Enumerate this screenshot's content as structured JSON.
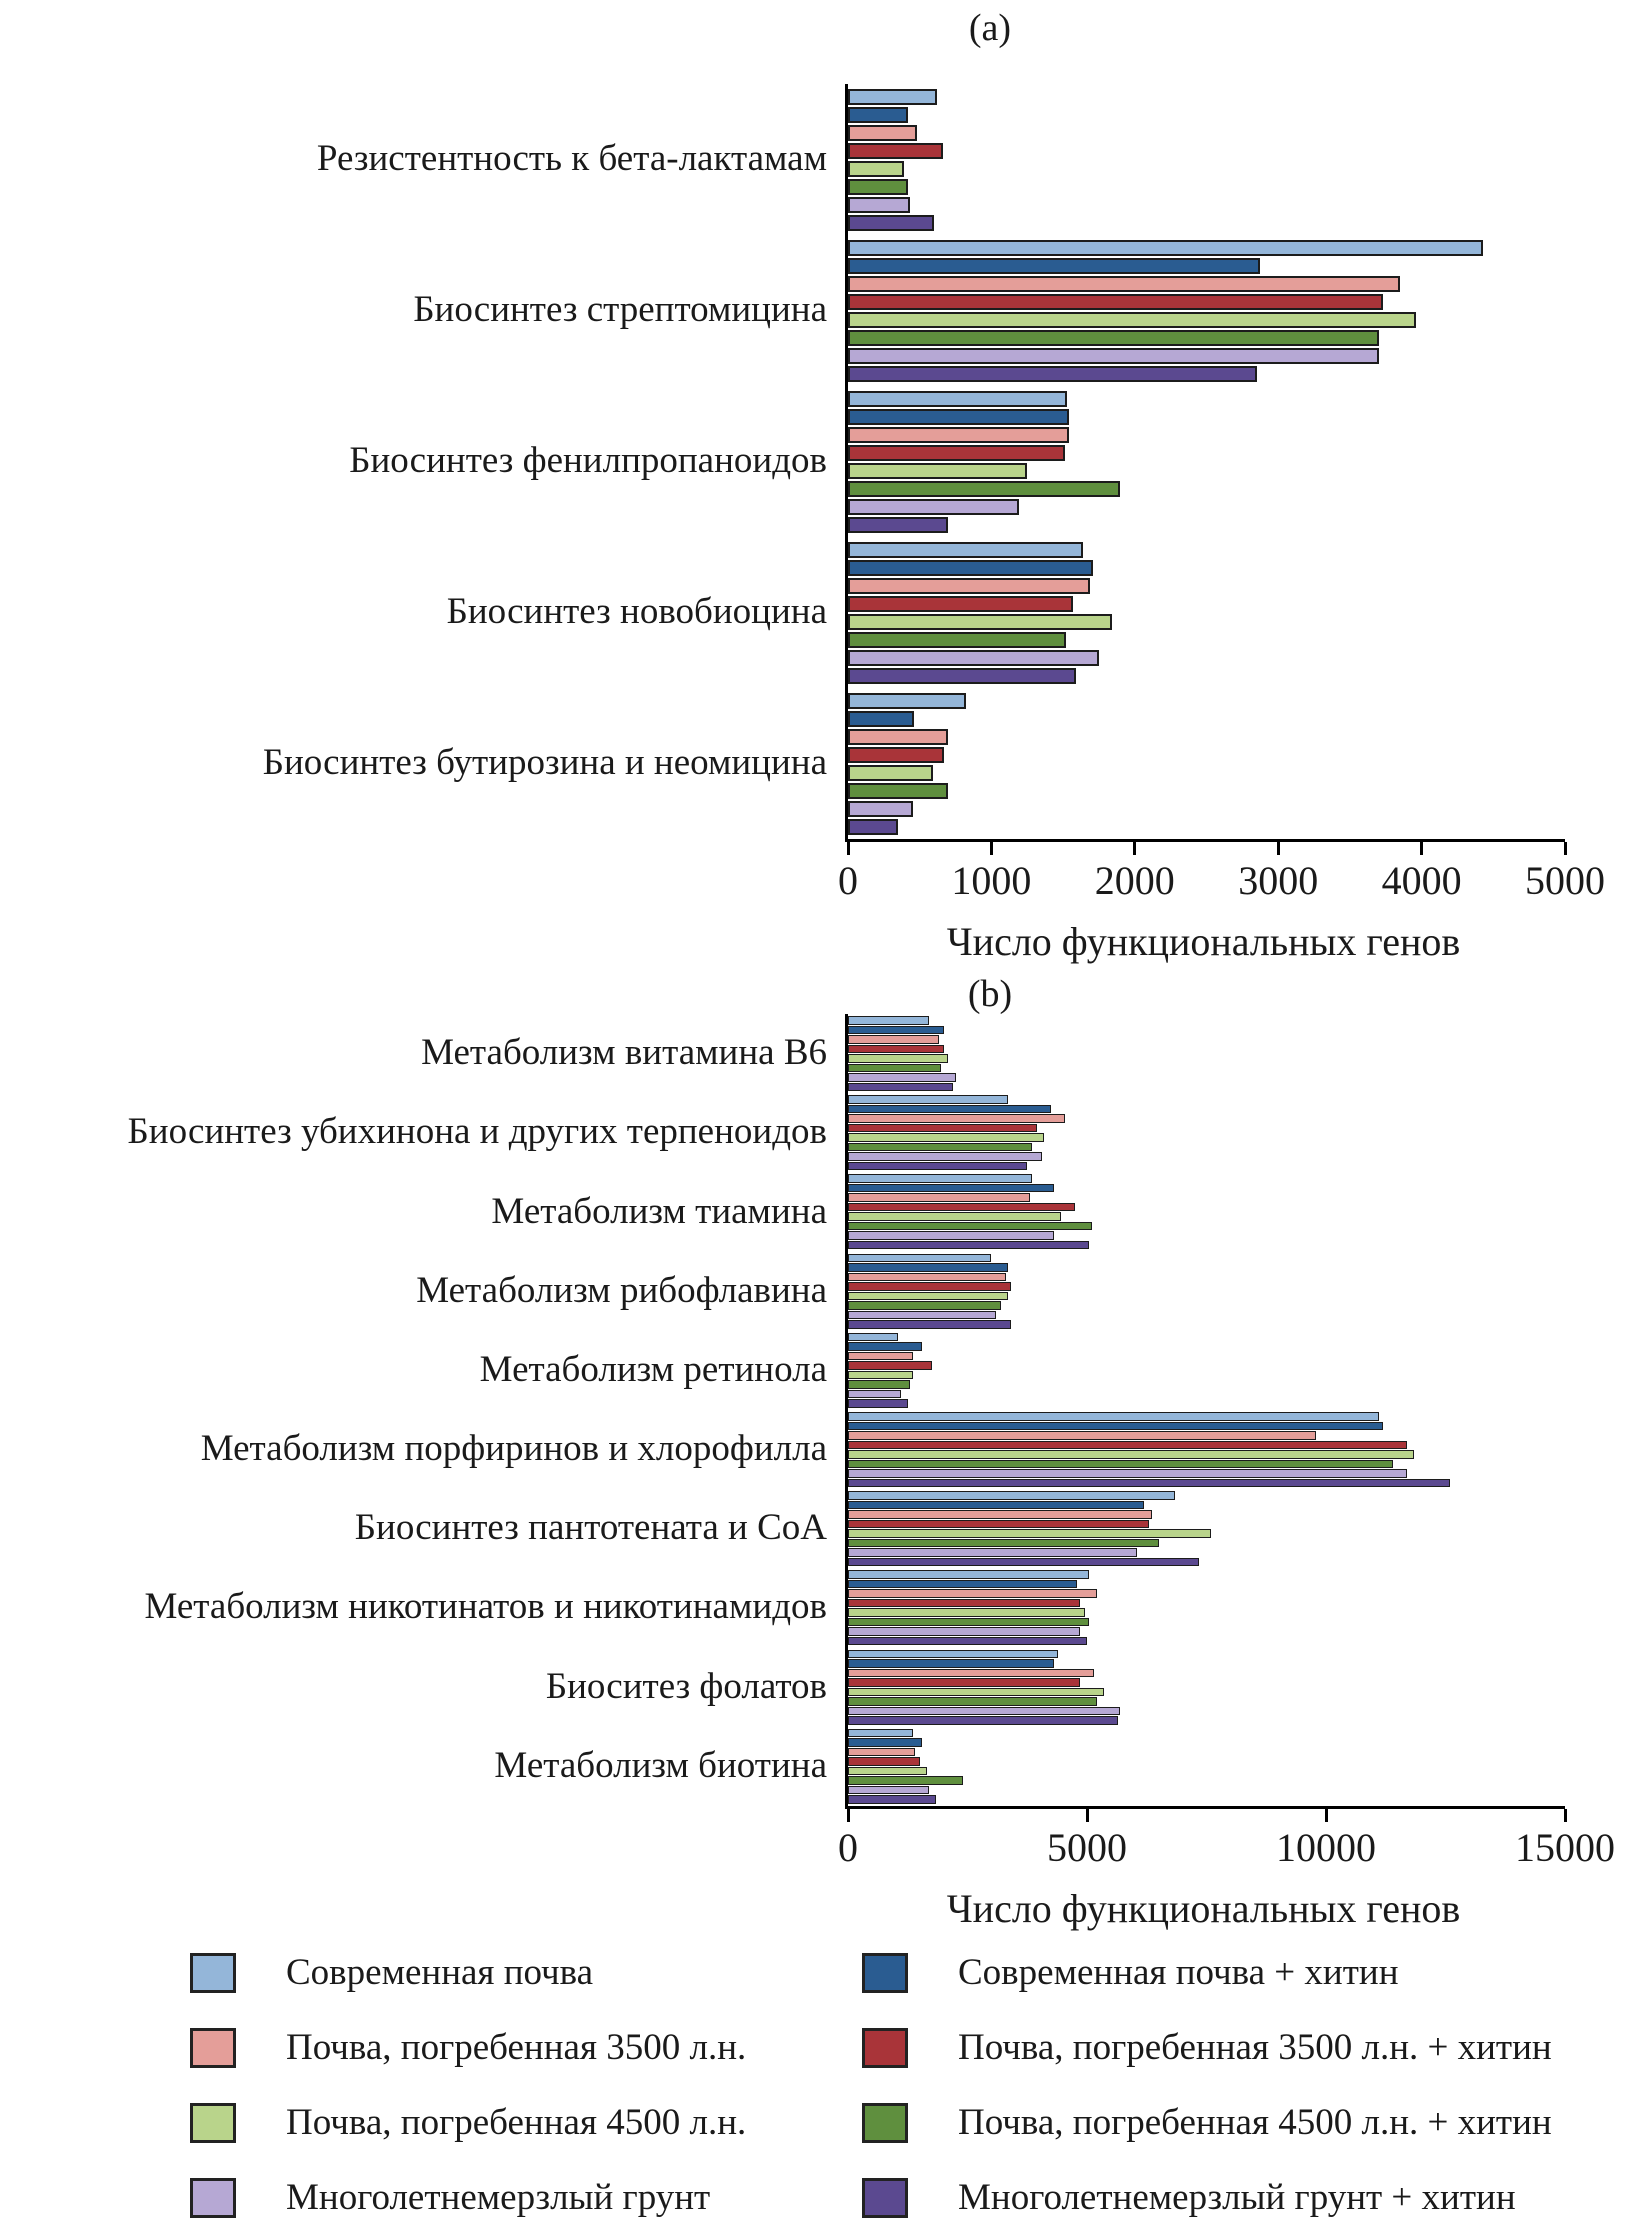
{
  "figure": {
    "axis_title": "Число функциональных генов"
  },
  "chart_data": [
    {
      "type": "bar",
      "orientation": "horizontal",
      "title": "(a)",
      "xlabel": "Число функциональных генов",
      "xlim": [
        0,
        5000
      ],
      "xticks": [
        0,
        1000,
        2000,
        3000,
        4000,
        5000
      ],
      "grid": false,
      "categories": [
        "Резистентность к бета-лактамам",
        "Биосинтез стрептомицина",
        "Биосинтез фенилпропаноидов",
        "Биосинтез новобиоцина",
        "Биосинтез бутирозина и неомицина"
      ],
      "series": [
        {
          "name": "Современная почва",
          "color": "#94b6d9",
          "values": [
            620,
            4430,
            1530,
            1640,
            820
          ]
        },
        {
          "name": "Современная почва + хитин",
          "color": "#2a5c91",
          "values": [
            420,
            2870,
            1540,
            1710,
            460
          ]
        },
        {
          "name": "Почва, погребенная 3500 л.н.",
          "color": "#e49e99",
          "values": [
            480,
            3850,
            1540,
            1690,
            700
          ]
        },
        {
          "name": "Почва, погребенная 3500 л.н. + хитин",
          "color": "#a93439",
          "values": [
            660,
            3730,
            1510,
            1570,
            670
          ]
        },
        {
          "name": "Почва, погребенная 4500 л.н.",
          "color": "#b9d48b",
          "values": [
            390,
            3960,
            1250,
            1840,
            590
          ]
        },
        {
          "name": "Почва, погребенная 4500 л.н. + хитин",
          "color": "#5f8f3e",
          "values": [
            420,
            3700,
            1900,
            1520,
            700
          ]
        },
        {
          "name": "Многолетнемерзлый грунт",
          "color": "#b6a8d4",
          "values": [
            430,
            3700,
            1190,
            1750,
            450
          ]
        },
        {
          "name": "Многолетнемерзлый грунт + хитин",
          "color": "#5b4990",
          "values": [
            600,
            2850,
            700,
            1590,
            350
          ]
        }
      ]
    },
    {
      "type": "bar",
      "orientation": "horizontal",
      "title": "(b)",
      "xlabel": "Число функциональных генов",
      "xlim": [
        0,
        15000
      ],
      "xticks": [
        0,
        5000,
        10000,
        15000
      ],
      "grid": false,
      "categories": [
        "Метаболизм витамина B6",
        "Биосинтез убихинона и других терпеноидов",
        "Метаболизм тиамина",
        "Метаболизм рибофлавина",
        "Метаболизм ретинола",
        "Метаболизм порфиринов и хлорофилла",
        "Биосинтез пантотената и CoA",
        "Метаболизм никотинатов и никотинамидов",
        "Биоситез фолатов",
        "Метаболизм биотина"
      ],
      "series": [
        {
          "name": "Современная почва",
          "color": "#94b6d9",
          "values": [
            1700,
            3350,
            3850,
            3000,
            1050,
            11100,
            6850,
            5050,
            4400,
            1350
          ]
        },
        {
          "name": "Современная почва + хитин",
          "color": "#2a5c91",
          "values": [
            2000,
            4250,
            4300,
            3350,
            1550,
            11200,
            6200,
            4800,
            4300,
            1550
          ]
        },
        {
          "name": "Почва, погребенная 3500 л.н.",
          "color": "#e49e99",
          "values": [
            1900,
            4550,
            3800,
            3300,
            1350,
            9800,
            6350,
            5200,
            5150,
            1400
          ]
        },
        {
          "name": "Почва, погребенная 3500 л.н. + хитин",
          "color": "#a93439",
          "values": [
            2000,
            3950,
            4750,
            3400,
            1750,
            11700,
            6300,
            4850,
            4850,
            1500
          ]
        },
        {
          "name": "Почва, погребенная 4500 л.н.",
          "color": "#b9d48b",
          "values": [
            2100,
            4100,
            4450,
            3350,
            1350,
            11850,
            7600,
            4950,
            5350,
            1650
          ]
        },
        {
          "name": "Почва, погребенная 4500 л.н. + хитин",
          "color": "#5f8f3e",
          "values": [
            1950,
            3850,
            5100,
            3200,
            1300,
            11400,
            6500,
            5050,
            5200,
            2400
          ]
        },
        {
          "name": "Многолетнемерзлый грунт",
          "color": "#b6a8d4",
          "values": [
            2250,
            4050,
            4300,
            3100,
            1100,
            11700,
            6050,
            4850,
            5700,
            1700
          ]
        },
        {
          "name": "Многолетнемерзлый грунт + хитин",
          "color": "#5b4990",
          "values": [
            2200,
            3750,
            5050,
            3400,
            1250,
            12600,
            7350,
            5000,
            5650,
            1850
          ]
        }
      ]
    }
  ],
  "legend": {
    "left_column": [
      {
        "label": "Современная почва",
        "color": "#94b6d9"
      },
      {
        "label": "Почва, погребенная 3500 л.н.",
        "color": "#e49e99"
      },
      {
        "label": "Почва, погребенная 4500 л.н.",
        "color": "#b9d48b"
      },
      {
        "label": "Многолетнемерзлый грунт",
        "color": "#b6a8d4"
      }
    ],
    "right_column": [
      {
        "label": "Современная почва + хитин",
        "color": "#2a5c91"
      },
      {
        "label": "Почва, погребенная 3500 л.н. + хитин",
        "color": "#a93439"
      },
      {
        "label": "Почва, погребенная 4500 л.н. + хитин",
        "color": "#5f8f3e"
      },
      {
        "label": "Многолетнемерзлый грунт + хитин",
        "color": "#5b4990"
      }
    ]
  }
}
